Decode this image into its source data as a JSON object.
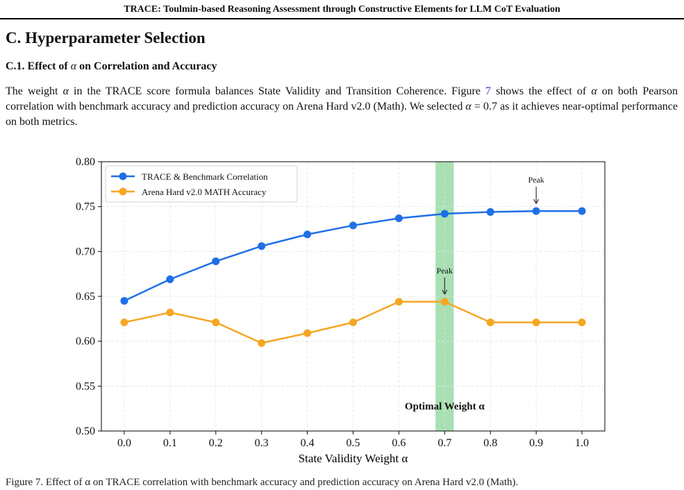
{
  "running_head": "TRACE: Toulmin-based Reasoning Assessment through Constructive Elements for LLM CoT Evaluation",
  "section_title": "C. Hyperparameter Selection",
  "subsection": {
    "prefix": "C.1. Effect of ",
    "symbol": "α",
    "suffix": " on Correlation and Accuracy"
  },
  "paragraph": {
    "p1": "The weight ",
    "sym1": "α",
    "p2": " in the TRACE score formula balances State Validity and Transition Coherence. Figure ",
    "figref": "7",
    "p3": " shows the effect of ",
    "sym2": "α",
    "p4": " on both Pearson correlation with benchmark accuracy and prediction accuracy on Arena Hard v2.0 (Math). We selected ",
    "sym3": "α",
    "p5": " = 0.7 as it achieves near-optimal performance on both metrics."
  },
  "chart_data": {
    "type": "line",
    "x": [
      0.0,
      0.1,
      0.2,
      0.3,
      0.4,
      0.5,
      0.6,
      0.7,
      0.8,
      0.9,
      1.0
    ],
    "x_tick_labels": [
      "0.0",
      "0.1",
      "0.2",
      "0.3",
      "0.4",
      "0.5",
      "0.6",
      "0.7",
      "0.8",
      "0.9",
      "1.0"
    ],
    "y_tick_labels": [
      "0.50",
      "0.55",
      "0.60",
      "0.65",
      "0.70",
      "0.75",
      "0.80"
    ],
    "y_ticks": [
      0.5,
      0.55,
      0.6,
      0.65,
      0.7,
      0.75,
      0.8
    ],
    "xlim": [
      -0.05,
      1.05
    ],
    "ylim": [
      0.5,
      0.8
    ],
    "xlabel": "State Validity Weight α",
    "ylabel": "",
    "grid": true,
    "legend_position": "top-left",
    "series": [
      {
        "name": "TRACE & Benchmark Correlation",
        "color": "#1f6fe8",
        "values": [
          0.645,
          0.669,
          0.689,
          0.706,
          0.719,
          0.729,
          0.737,
          0.742,
          0.744,
          0.745,
          0.745
        ]
      },
      {
        "name": "Arena Hard v2.0 MATH Accuracy",
        "color": "#f5a623",
        "values": [
          0.621,
          0.632,
          0.621,
          0.598,
          0.609,
          0.621,
          0.644,
          0.644,
          0.621,
          0.621,
          0.621
        ]
      }
    ],
    "highlight": {
      "x_from": 0.68,
      "x_to": 0.72,
      "color": "#a8e0b4",
      "label": "Optimal Weight α",
      "label_x": 0.7,
      "label_y": 0.528
    },
    "annotations": [
      {
        "text": "Peak",
        "x": 0.9,
        "y": 0.745
      },
      {
        "text": "Peak",
        "x": 0.7,
        "y": 0.644
      }
    ]
  },
  "colors": {
    "grid": "#e4e4e4",
    "axis": "#000000",
    "figref": "#3a3ad6"
  },
  "bottom_text": "Figure 7. Effect of α on TRACE correlation with benchmark accuracy and prediction accuracy on Arena Hard v2.0 (Math)."
}
